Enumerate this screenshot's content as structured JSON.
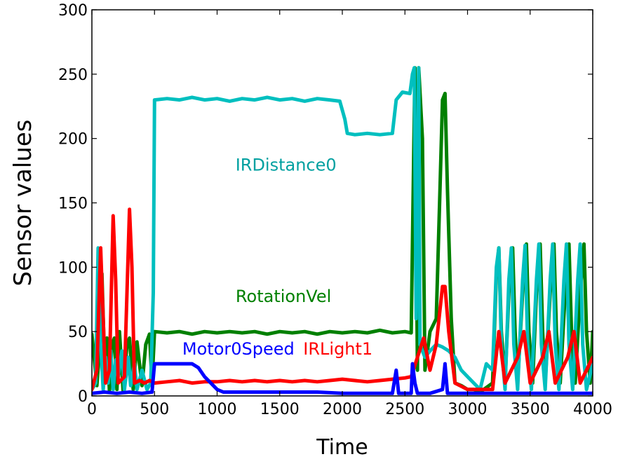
{
  "chart_data": {
    "type": "line",
    "title": "",
    "xlabel": "Time",
    "ylabel": "Sensor values",
    "xlim": [
      0,
      4000
    ],
    "ylim": [
      0,
      300
    ],
    "xticks": [
      0,
      500,
      1000,
      1500,
      2000,
      2500,
      3000,
      3500,
      4000
    ],
    "yticks": [
      0,
      50,
      100,
      150,
      200,
      250,
      300
    ],
    "grid": false,
    "legend": "none",
    "series": [
      {
        "name": "RotationVel",
        "color": "#008000",
        "points": [
          [
            0,
            48
          ],
          [
            40,
            8
          ],
          [
            60,
            35
          ],
          [
            80,
            95
          ],
          [
            100,
            30
          ],
          [
            120,
            45
          ],
          [
            140,
            4
          ],
          [
            160,
            40
          ],
          [
            180,
            45
          ],
          [
            200,
            5
          ],
          [
            220,
            50
          ],
          [
            250,
            3
          ],
          [
            280,
            40
          ],
          [
            300,
            45
          ],
          [
            330,
            5
          ],
          [
            360,
            42
          ],
          [
            400,
            8
          ],
          [
            430,
            40
          ],
          [
            460,
            48
          ],
          [
            480,
            10
          ],
          [
            500,
            50
          ],
          [
            600,
            49
          ],
          [
            700,
            50
          ],
          [
            800,
            48
          ],
          [
            900,
            50
          ],
          [
            1000,
            49
          ],
          [
            1100,
            50
          ],
          [
            1200,
            49
          ],
          [
            1300,
            50
          ],
          [
            1400,
            48
          ],
          [
            1500,
            50
          ],
          [
            1600,
            49
          ],
          [
            1700,
            50
          ],
          [
            1800,
            48
          ],
          [
            1900,
            50
          ],
          [
            2000,
            49
          ],
          [
            2100,
            50
          ],
          [
            2200,
            49
          ],
          [
            2300,
            51
          ],
          [
            2400,
            49
          ],
          [
            2500,
            50
          ],
          [
            2550,
            49
          ],
          [
            2580,
            255
          ],
          [
            2600,
            20
          ],
          [
            2610,
            255
          ],
          [
            2640,
            200
          ],
          [
            2660,
            20
          ],
          [
            2700,
            50
          ],
          [
            2750,
            60
          ],
          [
            2780,
            160
          ],
          [
            2800,
            230
          ],
          [
            2820,
            235
          ],
          [
            2840,
            160
          ],
          [
            2870,
            60
          ],
          [
            2900,
            10
          ],
          [
            2950,
            8
          ],
          [
            3000,
            5
          ],
          [
            3050,
            5
          ],
          [
            3100,
            3
          ],
          [
            3200,
            10
          ],
          [
            3230,
            95
          ],
          [
            3250,
            115
          ],
          [
            3270,
            50
          ],
          [
            3300,
            10
          ],
          [
            3330,
            80
          ],
          [
            3360,
            115
          ],
          [
            3380,
            50
          ],
          [
            3400,
            10
          ],
          [
            3440,
            80
          ],
          [
            3470,
            118
          ],
          [
            3490,
            50
          ],
          [
            3520,
            10
          ],
          [
            3550,
            80
          ],
          [
            3580,
            118
          ],
          [
            3600,
            50
          ],
          [
            3620,
            10
          ],
          [
            3660,
            80
          ],
          [
            3690,
            118
          ],
          [
            3710,
            50
          ],
          [
            3740,
            10
          ],
          [
            3780,
            80
          ],
          [
            3810,
            118
          ],
          [
            3830,
            50
          ],
          [
            3860,
            10
          ],
          [
            3900,
            80
          ],
          [
            3930,
            118
          ],
          [
            3950,
            50
          ],
          [
            3980,
            10
          ],
          [
            4000,
            50
          ]
        ]
      },
      {
        "name": "IRDistance0",
        "color": "#00bfbf",
        "points": [
          [
            0,
            5
          ],
          [
            30,
            10
          ],
          [
            50,
            115
          ],
          [
            70,
            40
          ],
          [
            90,
            5
          ],
          [
            110,
            30
          ],
          [
            130,
            10
          ],
          [
            150,
            35
          ],
          [
            170,
            5
          ],
          [
            190,
            28
          ],
          [
            210,
            15
          ],
          [
            240,
            35
          ],
          [
            260,
            5
          ],
          [
            290,
            30
          ],
          [
            310,
            8
          ],
          [
            340,
            25
          ],
          [
            360,
            5
          ],
          [
            400,
            20
          ],
          [
            440,
            5
          ],
          [
            470,
            10
          ],
          [
            490,
            80
          ],
          [
            500,
            230
          ],
          [
            600,
            231
          ],
          [
            700,
            230
          ],
          [
            800,
            232
          ],
          [
            900,
            230
          ],
          [
            1000,
            231
          ],
          [
            1100,
            229
          ],
          [
            1200,
            231
          ],
          [
            1300,
            230
          ],
          [
            1400,
            232
          ],
          [
            1500,
            230
          ],
          [
            1600,
            231
          ],
          [
            1700,
            229
          ],
          [
            1800,
            231
          ],
          [
            1900,
            230
          ],
          [
            1980,
            229
          ],
          [
            2020,
            215
          ],
          [
            2040,
            204
          ],
          [
            2100,
            203
          ],
          [
            2200,
            204
          ],
          [
            2300,
            203
          ],
          [
            2400,
            204
          ],
          [
            2430,
            230
          ],
          [
            2480,
            236
          ],
          [
            2540,
            235
          ],
          [
            2560,
            250
          ],
          [
            2575,
            255
          ],
          [
            2590,
            60
          ],
          [
            2610,
            255
          ],
          [
            2620,
            40
          ],
          [
            2660,
            30
          ],
          [
            2700,
            35
          ],
          [
            2750,
            40
          ],
          [
            2800,
            38
          ],
          [
            2850,
            35
          ],
          [
            2900,
            30
          ],
          [
            2950,
            20
          ],
          [
            3000,
            15
          ],
          [
            3050,
            10
          ],
          [
            3100,
            5
          ],
          [
            3150,
            25
          ],
          [
            3200,
            20
          ],
          [
            3230,
            100
          ],
          [
            3250,
            115
          ],
          [
            3270,
            40
          ],
          [
            3300,
            5
          ],
          [
            3330,
            90
          ],
          [
            3350,
            115
          ],
          [
            3370,
            40
          ],
          [
            3400,
            5
          ],
          [
            3440,
            90
          ],
          [
            3460,
            117
          ],
          [
            3480,
            40
          ],
          [
            3510,
            5
          ],
          [
            3550,
            90
          ],
          [
            3570,
            118
          ],
          [
            3590,
            40
          ],
          [
            3620,
            5
          ],
          [
            3660,
            90
          ],
          [
            3680,
            118
          ],
          [
            3700,
            40
          ],
          [
            3730,
            5
          ],
          [
            3770,
            90
          ],
          [
            3790,
            118
          ],
          [
            3810,
            40
          ],
          [
            3840,
            5
          ],
          [
            3880,
            90
          ],
          [
            3900,
            118
          ],
          [
            3920,
            40
          ],
          [
            3950,
            5
          ],
          [
            4000,
            25
          ]
        ]
      },
      {
        "name": "IRLight1",
        "color": "#ff0000",
        "points": [
          [
            0,
            5
          ],
          [
            40,
            20
          ],
          [
            70,
            115
          ],
          [
            90,
            60
          ],
          [
            110,
            10
          ],
          [
            140,
            20
          ],
          [
            170,
            140
          ],
          [
            190,
            90
          ],
          [
            210,
            10
          ],
          [
            260,
            15
          ],
          [
            300,
            145
          ],
          [
            320,
            100
          ],
          [
            340,
            10
          ],
          [
            380,
            12
          ],
          [
            420,
            10
          ],
          [
            460,
            12
          ],
          [
            500,
            10
          ],
          [
            600,
            11
          ],
          [
            700,
            12
          ],
          [
            800,
            10
          ],
          [
            900,
            11
          ],
          [
            1000,
            11
          ],
          [
            1100,
            12
          ],
          [
            1200,
            11
          ],
          [
            1300,
            12
          ],
          [
            1400,
            11
          ],
          [
            1500,
            12
          ],
          [
            1600,
            11
          ],
          [
            1700,
            12
          ],
          [
            1800,
            11
          ],
          [
            1900,
            12
          ],
          [
            2000,
            13
          ],
          [
            2100,
            12
          ],
          [
            2200,
            11
          ],
          [
            2300,
            12
          ],
          [
            2400,
            13
          ],
          [
            2500,
            14
          ],
          [
            2550,
            15
          ],
          [
            2600,
            30
          ],
          [
            2650,
            45
          ],
          [
            2700,
            20
          ],
          [
            2750,
            40
          ],
          [
            2800,
            85
          ],
          [
            2820,
            85
          ],
          [
            2850,
            50
          ],
          [
            2900,
            10
          ],
          [
            3000,
            5
          ],
          [
            3100,
            5
          ],
          [
            3200,
            5
          ],
          [
            3250,
            50
          ],
          [
            3300,
            10
          ],
          [
            3400,
            30
          ],
          [
            3450,
            50
          ],
          [
            3500,
            10
          ],
          [
            3600,
            30
          ],
          [
            3650,
            50
          ],
          [
            3700,
            10
          ],
          [
            3800,
            30
          ],
          [
            3850,
            50
          ],
          [
            3900,
            10
          ],
          [
            4000,
            30
          ]
        ]
      },
      {
        "name": "Motor0Speed",
        "color": "#0000ff",
        "points": [
          [
            0,
            2
          ],
          [
            100,
            3
          ],
          [
            200,
            2
          ],
          [
            300,
            3
          ],
          [
            400,
            2
          ],
          [
            480,
            3
          ],
          [
            500,
            25
          ],
          [
            600,
            25
          ],
          [
            700,
            25
          ],
          [
            800,
            25
          ],
          [
            850,
            22
          ],
          [
            900,
            15
          ],
          [
            950,
            10
          ],
          [
            1000,
            5
          ],
          [
            1050,
            3
          ],
          [
            1200,
            3
          ],
          [
            1400,
            3
          ],
          [
            1600,
            3
          ],
          [
            1800,
            3
          ],
          [
            2000,
            2
          ],
          [
            2100,
            2
          ],
          [
            2200,
            2
          ],
          [
            2300,
            2
          ],
          [
            2400,
            2
          ],
          [
            2430,
            20
          ],
          [
            2450,
            2
          ],
          [
            2550,
            2
          ],
          [
            2560,
            25
          ],
          [
            2580,
            10
          ],
          [
            2600,
            2
          ],
          [
            2700,
            2
          ],
          [
            2800,
            5
          ],
          [
            2820,
            25
          ],
          [
            2840,
            2
          ],
          [
            2900,
            2
          ],
          [
            3000,
            2
          ],
          [
            3500,
            2
          ],
          [
            4000,
            2
          ]
        ]
      }
    ],
    "annotations": [
      {
        "text": "IRDistance0",
        "color": "#00a0a0",
        "x": 1550,
        "y": 175
      },
      {
        "text": "RotationVel",
        "color": "#008000",
        "x": 1530,
        "y": 73
      },
      {
        "text": "Motor0Speed",
        "color": "#0000ff",
        "x": 1170,
        "y": 32
      },
      {
        "text": "IRLight1",
        "color": "#ff0000",
        "x": 1965,
        "y": 32
      }
    ]
  }
}
